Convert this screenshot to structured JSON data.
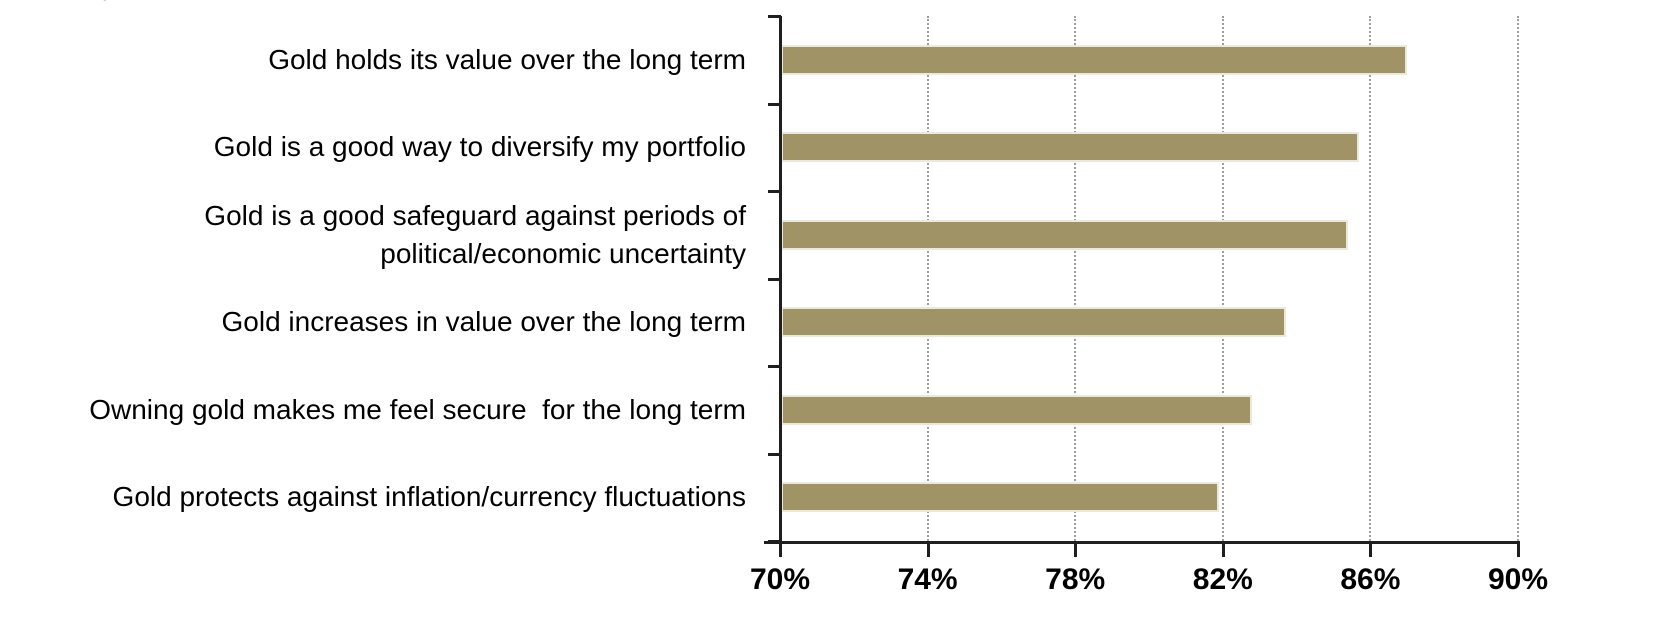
{
  "page": {
    "clipped_top_text": "%"
  },
  "chart_data": {
    "type": "bar",
    "orientation": "horizontal",
    "title": "",
    "categories": [
      "Gold holds its value over the long term",
      "Gold is a good way to diversify my portfolio",
      "Gold is a good safeguard against periods of political/economic uncertainty",
      "Gold increases in value over the long term",
      "Owning gold makes me feel secure  for the long term",
      "Gold protects against inflation/currency fluctuations"
    ],
    "values": [
      87,
      85.7,
      85.4,
      83.7,
      82.8,
      81.9
    ],
    "unit": "%",
    "xlabel": "",
    "ylabel": "",
    "xlim": [
      70,
      90
    ],
    "x_tick_values": [
      70,
      74,
      78,
      82,
      86,
      90
    ],
    "x_tick_labels": [
      "70%",
      "74%",
      "78%",
      "82%",
      "86%",
      "90%"
    ],
    "grid": "vertical-dashed",
    "legend": "none",
    "colors": {
      "bar": "#A09467",
      "bar_edge": "#ECE8DB",
      "gridline": "#9E9E9E",
      "axis": "#1F1F1F",
      "text": "#000000",
      "background": "#FFFFFF"
    }
  }
}
